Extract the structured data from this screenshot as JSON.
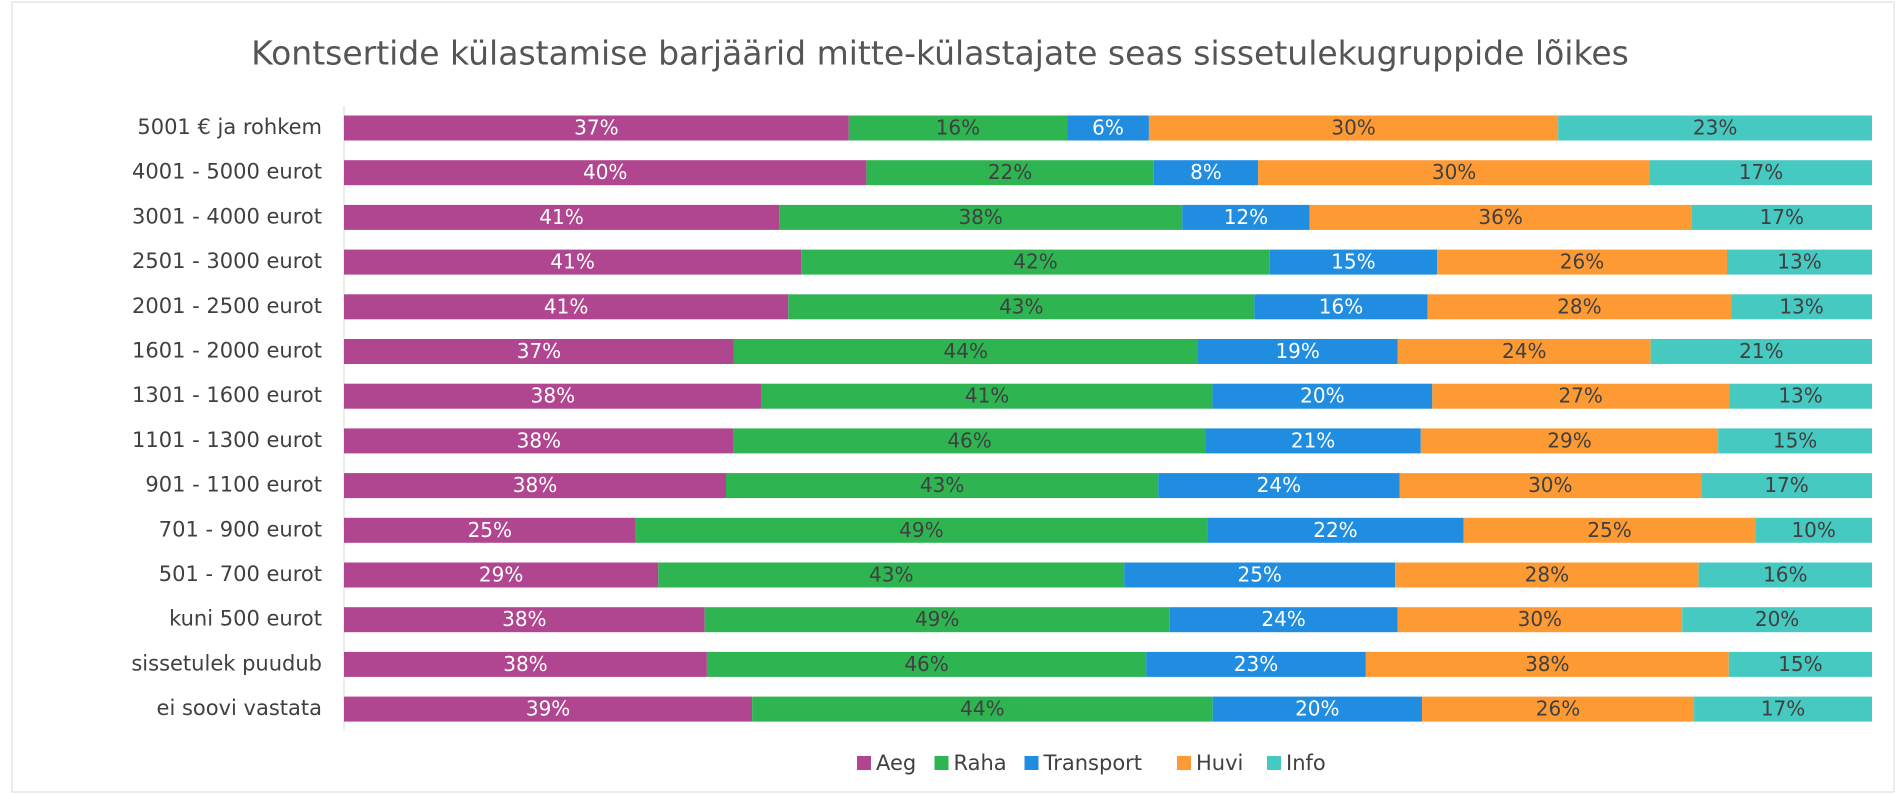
{
  "chart_data": {
    "type": "bar",
    "orientation": "horizontal",
    "stacked": "percent",
    "title": "Kontsertide külastamise barjäärid mitte-külastajate seas sissetulekugruppide lõikes",
    "categories": [
      "5001 € ja rohkem",
      "4001 - 5000 eurot",
      "3001 - 4000 eurot",
      "2501 - 3000 eurot",
      "2001 - 2500 eurot",
      "1601 - 2000 eurot",
      "1301 - 1600 eurot",
      "1101 - 1300 eurot",
      "901 - 1100 eurot",
      "701 - 900 eurot",
      "501 - 700 eurot",
      "kuni 500 eurot",
      "sissetulek puudub",
      "ei soovi vastata"
    ],
    "legend": "bottom",
    "series": [
      {
        "name": "Aeg",
        "color": "#b0468f",
        "values": [
          37,
          40,
          41,
          41,
          41,
          37,
          38,
          38,
          38,
          25,
          29,
          38,
          38,
          39
        ],
        "value_labels": [
          "37%",
          "40%",
          "41%",
          "41%",
          "41%",
          "37%",
          "38%",
          "38%",
          "38%",
          "25%",
          "29%",
          "38%",
          "38%",
          "39%"
        ]
      },
      {
        "name": "Raha",
        "color": "#2eb552",
        "values": [
          16,
          22,
          38,
          42,
          43,
          44,
          41,
          46,
          43,
          49,
          43,
          49,
          46,
          44
        ],
        "value_labels": [
          "16%",
          "22%",
          "38%",
          "42%",
          "43%",
          "44%",
          "41%",
          "46%",
          "43%",
          "49%",
          "43%",
          "49%",
          "46%",
          "44%"
        ]
      },
      {
        "name": "Transport",
        "color": "#208de1",
        "values": [
          6,
          8,
          12,
          15,
          16,
          19,
          20,
          21,
          24,
          22,
          25,
          24,
          23,
          20
        ],
        "value_labels": [
          "6%",
          "8%",
          "12%",
          "15%",
          "16%",
          "19%",
          "20%",
          "21%",
          "24%",
          "22%",
          "25%",
          "24%",
          "23%",
          "20%"
        ]
      },
      {
        "name": "Huvi",
        "color": "#fd9a34",
        "values": [
          30,
          30,
          36,
          26,
          28,
          24,
          27,
          29,
          30,
          25,
          28,
          30,
          38,
          26
        ],
        "value_labels": [
          "30%",
          "30%",
          "36%",
          "26%",
          "28%",
          "24%",
          "27%",
          "29%",
          "30%",
          "25%",
          "28%",
          "30%",
          "38%",
          "26%"
        ]
      },
      {
        "name": "Info",
        "color": "#46c9c1",
        "values": [
          23,
          17,
          17,
          13,
          13,
          21,
          13,
          15,
          17,
          10,
          16,
          20,
          15,
          17
        ],
        "value_labels": [
          "23%",
          "17%",
          "17%",
          "13%",
          "13%",
          "21%",
          "13%",
          "15%",
          "17%",
          "10%",
          "16%",
          "20%",
          "15%",
          "17%"
        ]
      }
    ]
  }
}
